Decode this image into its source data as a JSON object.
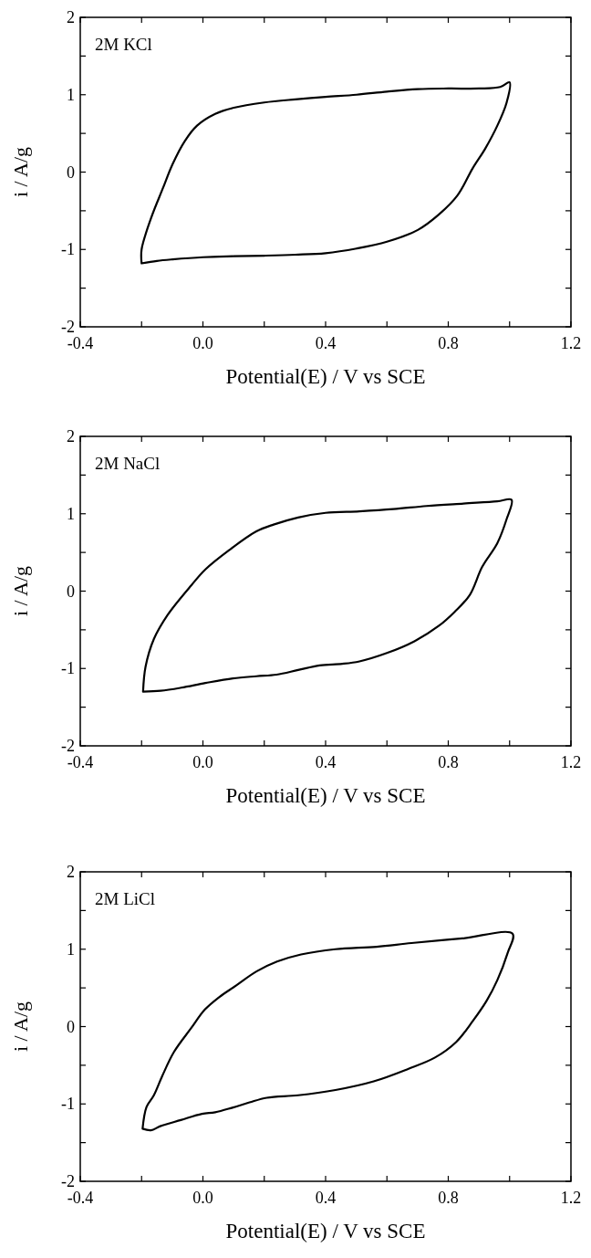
{
  "chart_data": [
    {
      "type": "line",
      "xlabel": "Potential(E) / V vs  SCE",
      "ylabel": "i / A/g",
      "annotations": [
        "2M KCl"
      ],
      "xlim": [
        -0.4,
        1.2
      ],
      "ylim": [
        -2,
        2
      ],
      "xticks": [
        {
          "value": -0.4,
          "label": "-0.4"
        },
        {
          "value": -0.2,
          "label": null
        },
        {
          "value": 0,
          "label": "0.0"
        },
        {
          "value": 0.2,
          "label": null
        },
        {
          "value": 0.4,
          "label": "0.4"
        },
        {
          "value": 0.6,
          "label": null
        },
        {
          "value": 0.8,
          "label": "0.8"
        },
        {
          "value": 1.0,
          "label": null
        },
        {
          "value": 1.2,
          "label": "1.2"
        }
      ],
      "yticks": [
        -2,
        {
          "value": -1.5,
          "label": null
        },
        -1,
        {
          "value": -0.5,
          "label": null
        },
        0,
        {
          "value": 0.5,
          "label": null
        },
        1,
        {
          "value": 1.5,
          "label": null
        },
        2
      ]
    },
    {
      "type": "line",
      "xlabel": "Potential(E) / V vs  SCE",
      "ylabel": "i / A/g",
      "annotations": [
        "2M NaCl"
      ],
      "xlim": [
        -0.4,
        1.2
      ],
      "ylim": [
        -2,
        2
      ],
      "xticks": [
        {
          "value": -0.4,
          "label": "-0.4"
        },
        {
          "value": -0.2,
          "label": null
        },
        {
          "value": 0,
          "label": "0.0"
        },
        {
          "value": 0.2,
          "label": null
        },
        {
          "value": 0.4,
          "label": "0.4"
        },
        {
          "value": 0.6,
          "label": null
        },
        {
          "value": 0.8,
          "label": "0.8"
        },
        {
          "value": 1.0,
          "label": null
        },
        {
          "value": 1.2,
          "label": "1.2"
        }
      ],
      "yticks": [
        -2,
        {
          "value": -1.5,
          "label": null
        },
        -1,
        {
          "value": -0.5,
          "label": null
        },
        0,
        {
          "value": 0.5,
          "label": null
        },
        1,
        {
          "value": 1.5,
          "label": null
        },
        2
      ]
    },
    {
      "type": "line",
      "xlabel": "Potential(E) / V vs  SCE",
      "ylabel": "i / A/g",
      "annotations": [
        "2M LiCl"
      ],
      "xlim": [
        -0.4,
        1.2
      ],
      "ylim": [
        -2,
        2
      ],
      "xticks": [
        {
          "value": -0.4,
          "label": "-0.4"
        },
        {
          "value": -0.2,
          "label": null
        },
        {
          "value": 0,
          "label": "0.0"
        },
        {
          "value": 0.2,
          "label": null
        },
        {
          "value": 0.4,
          "label": "0.4"
        },
        {
          "value": 0.6,
          "label": null
        },
        {
          "value": 0.8,
          "label": "0.8"
        },
        {
          "value": 1.0,
          "label": null
        },
        {
          "value": 1.2,
          "label": "1.2"
        }
      ],
      "yticks": [
        -2,
        {
          "value": -1.5,
          "label": null
        },
        -1,
        {
          "value": -0.5,
          "label": null
        },
        0,
        {
          "value": 0.5,
          "label": null
        },
        1,
        {
          "value": 1.5,
          "label": null
        },
        2
      ]
    }
  ]
}
